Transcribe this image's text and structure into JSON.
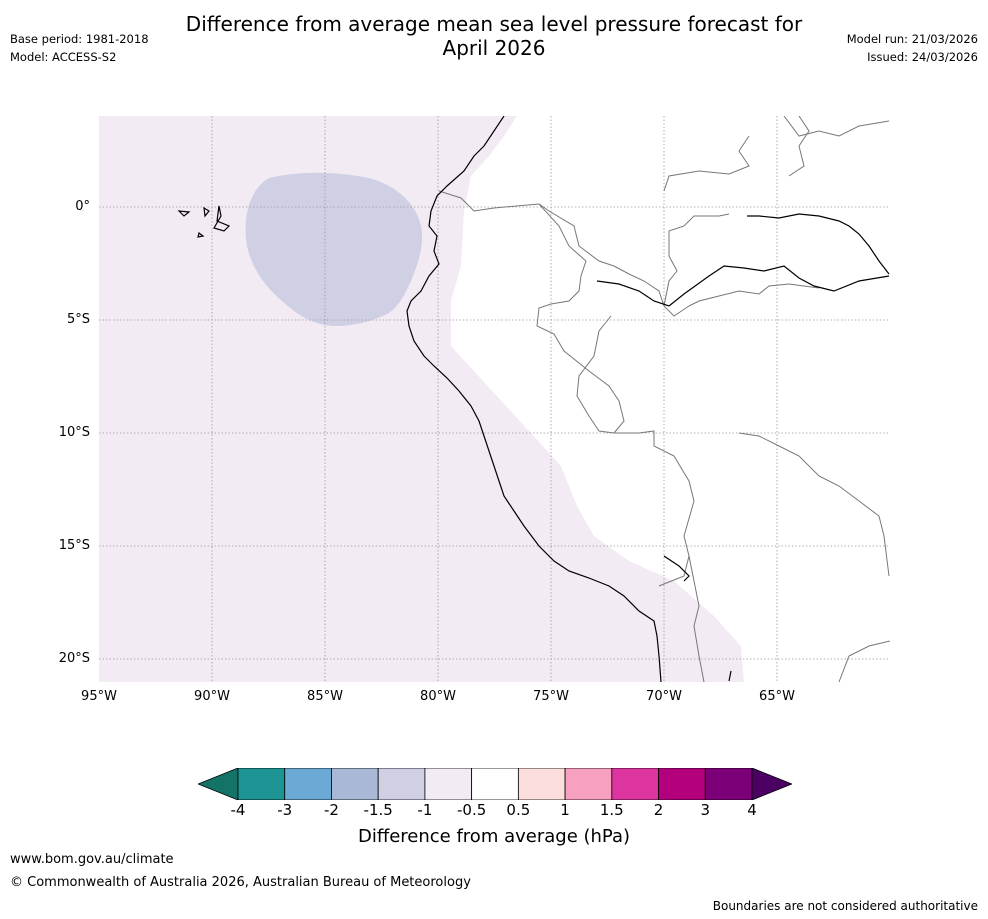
{
  "header": {
    "title_line1": "Difference from average mean sea level pressure forecast for",
    "title_line2": "April 2026",
    "base_period": "Base period: 1981-2018",
    "model": "Model: ACCESS-S2",
    "model_run": "Model run: 21/03/2026",
    "issued": "Issued: 24/03/2026"
  },
  "map": {
    "lat_labels": [
      "0°",
      "5°S",
      "10°S",
      "15°S",
      "20°S"
    ],
    "lon_labels": [
      "95°W",
      "90°W",
      "85°W",
      "80°W",
      "75°W",
      "70°W",
      "65°W"
    ]
  },
  "colorbar": {
    "ticks": [
      "-4",
      "-3",
      "-2",
      "-1.5",
      "-1",
      "-0.5",
      "0.5",
      "1",
      "1.5",
      "2",
      "3",
      "4"
    ],
    "colors": [
      "#137366",
      "#1e9494",
      "#6aaad4",
      "#a8b8d6",
      "#cfd0e4",
      "#f3ebf4",
      "#ffffff",
      "#fcdedd",
      "#f7a0bf",
      "#dd35a0",
      "#b5007e",
      "#7b0077",
      "#4b0062"
    ],
    "label": "Difference from average (hPa)"
  },
  "footer": {
    "website": "www.bom.gov.au/climate",
    "copyright": "© Commonwealth of Australia 2026, Australian Bureau of Meteorology",
    "disclaimer": "Boundaries are not considered authoritative"
  }
}
